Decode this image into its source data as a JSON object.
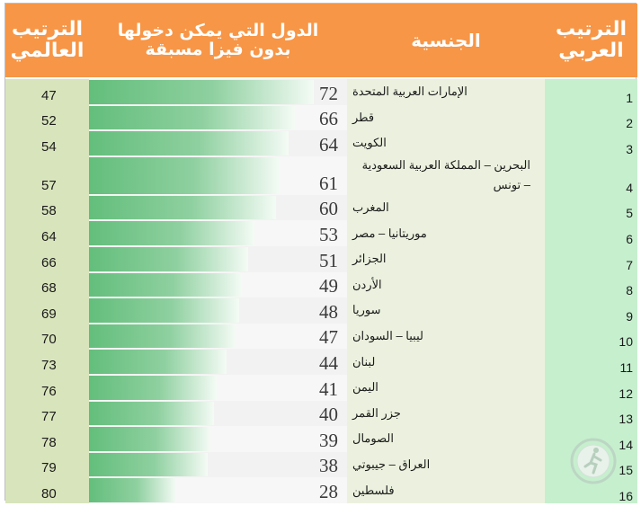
{
  "headers": {
    "world_rank": [
      "الترتيب",
      "العالمي"
    ],
    "countries": [
      "الدول التي يمكن دخولها",
      "بدون فيزا مسبقة"
    ],
    "nationality": "الجنسية",
    "arab_rank": [
      "الترتيب",
      "العربي"
    ]
  },
  "colors": {
    "header": "#f79646",
    "bar_start": "#63be7b",
    "bar_end": "#ffffff"
  },
  "chart_data": {
    "type": "table",
    "columns": [
      "الترتيب العالمي",
      "الدول التي يمكن دخولها بدون فيزا مسبقة",
      "الجنسية",
      "الترتيب العربي"
    ],
    "scale_max": 72,
    "rows": [
      {
        "world": "47",
        "count": 72,
        "nation": "الإمارات العربية المتحدة",
        "arab": "1"
      },
      {
        "world": "52",
        "count": 66,
        "nation": "قطر",
        "arab": "2"
      },
      {
        "world": "54",
        "count": 64,
        "nation": "الكويت",
        "arab": "3"
      },
      {
        "world": "57",
        "count": 61,
        "nation": "البحرين – المملكة العربية السعودية – تونس",
        "arab": "4"
      },
      {
        "world": "58",
        "count": 60,
        "nation": "المغرب",
        "arab": "5"
      },
      {
        "world": "64",
        "count": 53,
        "nation": "موريتانيا – مصر",
        "arab": "6"
      },
      {
        "world": "66",
        "count": 51,
        "nation": "الجزائر",
        "arab": "7"
      },
      {
        "world": "68",
        "count": 49,
        "nation": "الأردن",
        "arab": "8"
      },
      {
        "world": "69",
        "count": 48,
        "nation": "سوريا",
        "arab": "9"
      },
      {
        "world": "70",
        "count": 47,
        "nation": "ليبيا – السودان",
        "arab": "10"
      },
      {
        "world": "73",
        "count": 44,
        "nation": "لبنان",
        "arab": "11"
      },
      {
        "world": "76",
        "count": 41,
        "nation": "اليمن",
        "arab": "12"
      },
      {
        "world": "77",
        "count": 40,
        "nation": "جزر القمر",
        "arab": "13"
      },
      {
        "world": "78",
        "count": 39,
        "nation": "الصومال",
        "arab": "14"
      },
      {
        "world": "79",
        "count": 38,
        "nation": "العراق – جيبوتي",
        "arab": "15"
      },
      {
        "world": "80",
        "count": 28,
        "nation": "فلسطين",
        "arab": "16"
      }
    ]
  }
}
